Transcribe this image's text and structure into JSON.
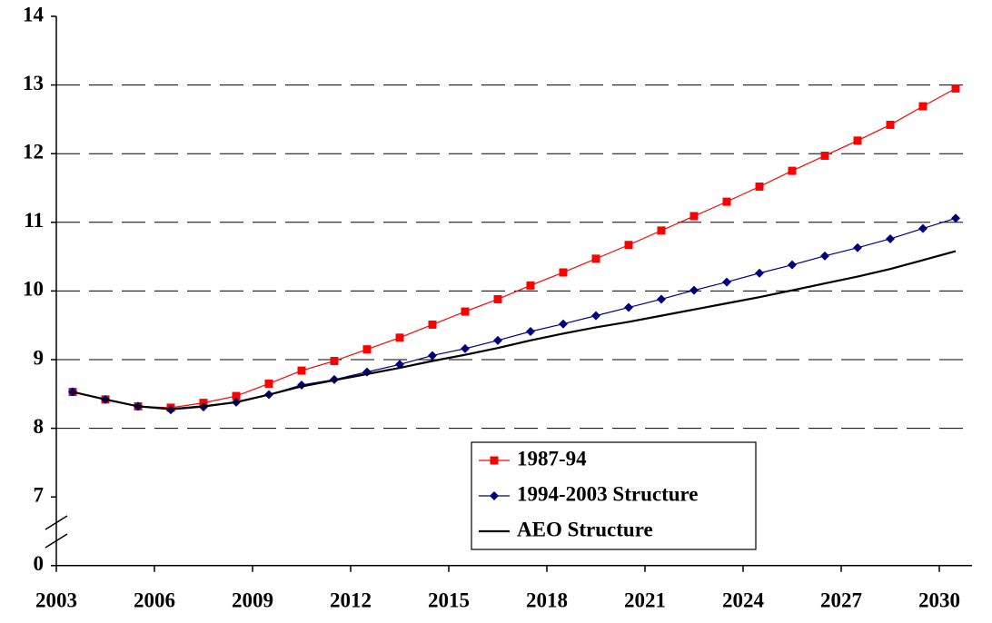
{
  "chart_data": {
    "type": "line",
    "categories": [
      "2003",
      null,
      null,
      "2006",
      null,
      null,
      "2009",
      null,
      null,
      "2012",
      null,
      null,
      "2015",
      null,
      null,
      "2018",
      null,
      null,
      "2021",
      null,
      null,
      "2024",
      null,
      null,
      "2027",
      null,
      null,
      "2030"
    ],
    "series": [
      {
        "name": "1987-94",
        "color": "#ff0000",
        "marker": "square",
        "values": [
          8.53,
          8.42,
          8.32,
          8.3,
          8.37,
          8.47,
          8.65,
          8.84,
          8.98,
          9.15,
          9.32,
          9.51,
          9.7,
          9.88,
          10.08,
          10.27,
          10.47,
          10.67,
          10.88,
          11.09,
          11.3,
          11.52,
          11.75,
          11.97,
          12.19,
          12.42,
          12.69,
          12.95
        ]
      },
      {
        "name": "1994-2003 Structure",
        "color": "#000080",
        "marker": "diamond",
        "values": [
          8.53,
          8.42,
          8.32,
          8.27,
          8.31,
          8.38,
          8.49,
          8.63,
          8.71,
          8.82,
          8.93,
          9.06,
          9.16,
          9.28,
          9.41,
          9.52,
          9.64,
          9.76,
          9.88,
          10.01,
          10.13,
          10.26,
          10.38,
          10.51,
          10.63,
          10.76,
          10.91,
          11.06
        ]
      },
      {
        "name": "AEO Structure",
        "color": "#000000",
        "marker": "none",
        "values": [
          8.53,
          8.42,
          8.32,
          8.28,
          8.32,
          8.38,
          8.49,
          8.61,
          8.7,
          8.79,
          8.88,
          8.98,
          9.07,
          9.17,
          9.28,
          9.38,
          9.47,
          9.55,
          9.64,
          9.73,
          9.82,
          9.91,
          10.01,
          10.11,
          10.21,
          10.32,
          10.45,
          10.58
        ]
      }
    ],
    "ylim": [
      0,
      14
    ],
    "y_break": [
      0,
      7
    ],
    "yticks": [
      0,
      7,
      8,
      9,
      10,
      11,
      12,
      13,
      14
    ],
    "grid": true,
    "legend": "bottom-center"
  }
}
